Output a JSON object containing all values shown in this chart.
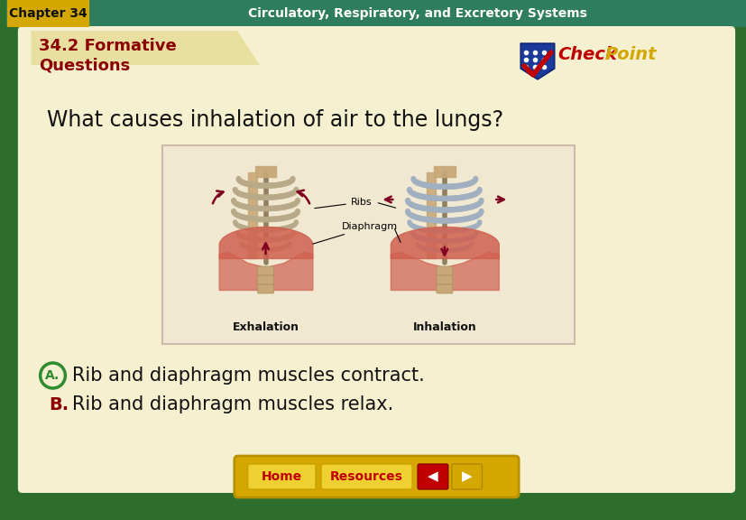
{
  "header_bg": "#2e7d5e",
  "header_text_chapter": "Chapter 34",
  "header_text_title": "Circulatory, Respiratory, and Excretory Systems",
  "header_chapter_bg": "#d4a800",
  "outer_bg": "#2d6e2d",
  "tab_bg": "#e8dfa0",
  "main_bg": "#f5f0d0",
  "section_title_line1": "34.2 Formative",
  "section_title_line2": "Questions",
  "section_title_color": "#8b0000",
  "question_text": "What causes inhalation of air to the lungs?",
  "question_color": "#111111",
  "answer_a_text": "Rib and diaphragm muscles contract.",
  "answer_b_text": "Rib and diaphragm muscles relax.",
  "answer_color": "#111111",
  "answer_a_circle_color": "#2e8b2e",
  "answer_b_label_color": "#8b0000",
  "bottom_bar_bg": "#d4a800",
  "checkpoint_check_color": "#c00000",
  "checkpoint_badge_color": "#1a3a9a",
  "checkpoint_text1_color": "#c00000",
  "checkpoint_text2_color": "#d4a800",
  "nav_arrow_left_color": "#c00000",
  "nav_arrow_right_color": "#d4a800"
}
